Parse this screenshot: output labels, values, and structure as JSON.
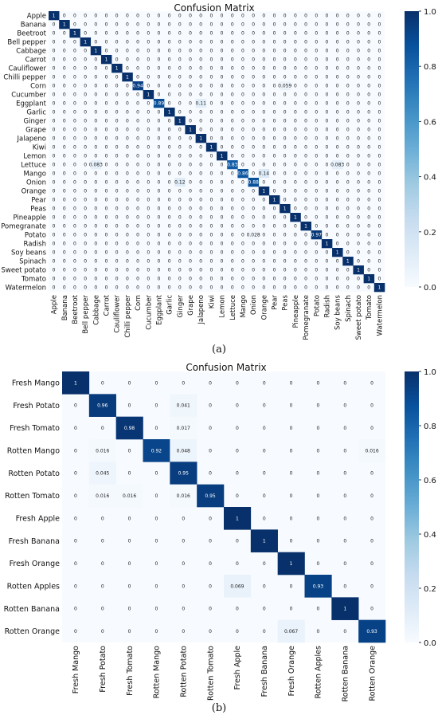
{
  "figure": {
    "panel_a_caption": "(a)",
    "panel_b_caption": "(b)"
  },
  "chart_data": [
    {
      "type": "heatmap",
      "panel": "a",
      "title": "Confusion Matrix",
      "labels": [
        "Apple",
        "Banana",
        "Beetroot",
        "Bell pepper",
        "Cabbage",
        "Carrot",
        "Cauliflower",
        "Chilli pepper",
        "Corn",
        "Cucumber",
        "Eggplant",
        "Garlic",
        "Ginger",
        "Grape",
        "Jalapeno",
        "Kiwi",
        "Lemon",
        "Lettuce",
        "Mango",
        "Onion",
        "Orange",
        "Pear",
        "Peas",
        "Pineapple",
        "Pomegranate",
        "Potato",
        "Radish",
        "Soy beans",
        "Spinach",
        "Sweet potato",
        "Tomato",
        "Watermelon"
      ],
      "value_labels": {
        "0": "0",
        "1": "1",
        "0.94": "0.94",
        "0.059": "0.059",
        "0.89": "0.89",
        "0.11": "0.11",
        "0.083": "0.083",
        "0.83": "0.83",
        "0.86": "0.86",
        "0.14": "0.14",
        "0.12": "0.12",
        "0.88": "0.88",
        "0.028": "0.028",
        "0.97": "0.97"
      },
      "off_diagonal": [
        {
          "row": 8,
          "col": 22,
          "value": 0.059
        },
        {
          "row": 10,
          "col": 14,
          "value": 0.11
        },
        {
          "row": 17,
          "col": 4,
          "value": 0.083
        },
        {
          "row": 17,
          "col": 27,
          "value": 0.083
        },
        {
          "row": 18,
          "col": 20,
          "value": 0.14
        },
        {
          "row": 19,
          "col": 12,
          "value": 0.12
        },
        {
          "row": 25,
          "col": 19,
          "value": 0.028
        }
      ],
      "diagonal": {
        "8": 0.94,
        "10": 0.89,
        "17": 0.83,
        "18": 0.86,
        "19": 0.88,
        "25": 0.97
      },
      "colorbar": {
        "range": [
          0,
          1
        ],
        "ticks": [
          "0.0",
          "0.2",
          "0.4",
          "0.6",
          "0.8",
          "1.0"
        ]
      },
      "colors": {
        "low": "#f7fbff",
        "high": "#08306b"
      }
    },
    {
      "type": "heatmap",
      "panel": "b",
      "title": "Confusion Matrix",
      "labels": [
        "Fresh Mango",
        "Fresh Potato",
        "Fresh Tomato",
        "Rotten Mango",
        "Rotten Potato",
        "Rotten Tomato",
        "Fresh Apple",
        "Fresh Banana",
        "Fresh Orange",
        "Rotten Apples",
        "Rotten Banana",
        "Rotten Orange"
      ],
      "value_labels": {
        "0": "0",
        "1": "1",
        "0.96": "0.96",
        "0.041": "0.041",
        "0.98": "0.98",
        "0.017": "0.017",
        "0.016": "0.016",
        "0.92": "0.92",
        "0.048": "0.048",
        "0.045": "0.045",
        "0.95": "0.95",
        "0.069": "0.069",
        "0.93": "0.93",
        "0.067": "0.067"
      },
      "matrix": [
        [
          1,
          0,
          0,
          0,
          0,
          0,
          0,
          0,
          0,
          0,
          0,
          0
        ],
        [
          0,
          0.96,
          0,
          0,
          0.041,
          0,
          0,
          0,
          0,
          0,
          0,
          0
        ],
        [
          0,
          0,
          0.98,
          0,
          0.017,
          0,
          0,
          0,
          0,
          0,
          0,
          0
        ],
        [
          0,
          0.016,
          0,
          0.92,
          0.048,
          0,
          0,
          0,
          0,
          0,
          0,
          0.016
        ],
        [
          0,
          0.045,
          0,
          0,
          0.95,
          0,
          0,
          0,
          0,
          0,
          0,
          0
        ],
        [
          0,
          0.016,
          0.016,
          0,
          0.016,
          0.95,
          0,
          0,
          0,
          0,
          0,
          0
        ],
        [
          0,
          0,
          0,
          0,
          0,
          0,
          1,
          0,
          0,
          0,
          0,
          0
        ],
        [
          0,
          0,
          0,
          0,
          0,
          0,
          0,
          1,
          0,
          0,
          0,
          0
        ],
        [
          0,
          0,
          0,
          0,
          0,
          0,
          0,
          0,
          1,
          0,
          0,
          0
        ],
        [
          0,
          0,
          0,
          0,
          0,
          0,
          0.069,
          0,
          0,
          0.93,
          0,
          0
        ],
        [
          0,
          0,
          0,
          0,
          0,
          0,
          0,
          0,
          0,
          0,
          1,
          0
        ],
        [
          0,
          0,
          0,
          0,
          0,
          0,
          0,
          0,
          0.067,
          0,
          0,
          0.93
        ]
      ],
      "colorbar": {
        "range": [
          0,
          1
        ],
        "ticks": [
          "0.0",
          "0.2",
          "0.4",
          "0.6",
          "0.8",
          "1.0"
        ]
      },
      "colors": {
        "low": "#f7fbff",
        "high": "#08306b"
      }
    }
  ]
}
